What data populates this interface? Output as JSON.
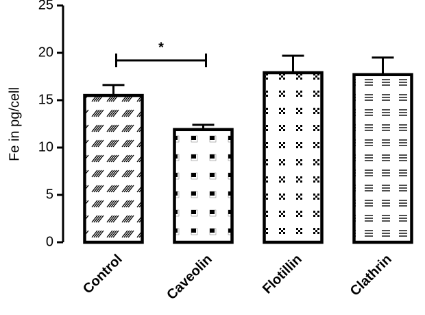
{
  "chart_data": {
    "type": "bar",
    "y_label": "Fe in pg/cell",
    "categories": [
      "Control",
      "Caveolin",
      "Flotillin",
      "Clathrin"
    ],
    "values": [
      15.5,
      11.9,
      17.9,
      17.7
    ],
    "errors": [
      1.1,
      0.5,
      1.8,
      1.8
    ],
    "color": "#000000",
    "ylim": [
      0,
      25
    ],
    "yticks": [
      0,
      5,
      10,
      15,
      20,
      25
    ],
    "annotation": "*"
  }
}
